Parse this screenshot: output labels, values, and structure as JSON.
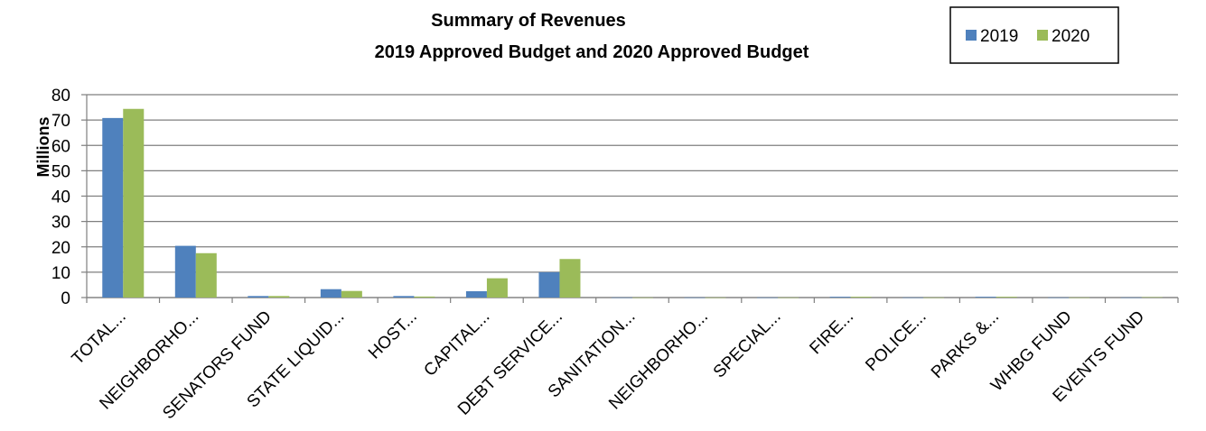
{
  "chart_data": {
    "type": "bar",
    "title": "Summary of Revenues",
    "subtitle": "2019 Approved Budget and 2020 Approved Budget",
    "xlabel": "",
    "ylabel": "Millions",
    "ylim": [
      0,
      80
    ],
    "yticks": [
      0,
      10,
      20,
      30,
      40,
      50,
      60,
      70,
      80
    ],
    "grid": true,
    "legend_position": "top-right",
    "categories": [
      "TOTAL...",
      "NEIGHBORHO...",
      "SENATORS FUND",
      "STATE LIQUID...",
      "HOST...",
      "CAPITAL...",
      "DEBT SERVICE...",
      "SANITATION...",
      "NEIGHBORHO...",
      "SPECIAL...",
      "FIRE...",
      "POLICE...",
      "PARKS &...",
      "WHBG FUND",
      "EVENTS FUND"
    ],
    "series": [
      {
        "name": "2019",
        "color": "#4f81bd",
        "values": [
          70.8,
          20.4,
          0.6,
          3.3,
          0.6,
          2.5,
          10.0,
          0.05,
          0.05,
          0.05,
          0.3,
          0.05,
          0.3,
          0.05,
          0.05
        ]
      },
      {
        "name": "2020",
        "color": "#9bbb59",
        "values": [
          74.4,
          17.5,
          0.6,
          2.6,
          0.4,
          7.6,
          15.2,
          0.05,
          0.05,
          0.05,
          0.3,
          0.05,
          0.3,
          0.05,
          0.15
        ]
      }
    ]
  }
}
